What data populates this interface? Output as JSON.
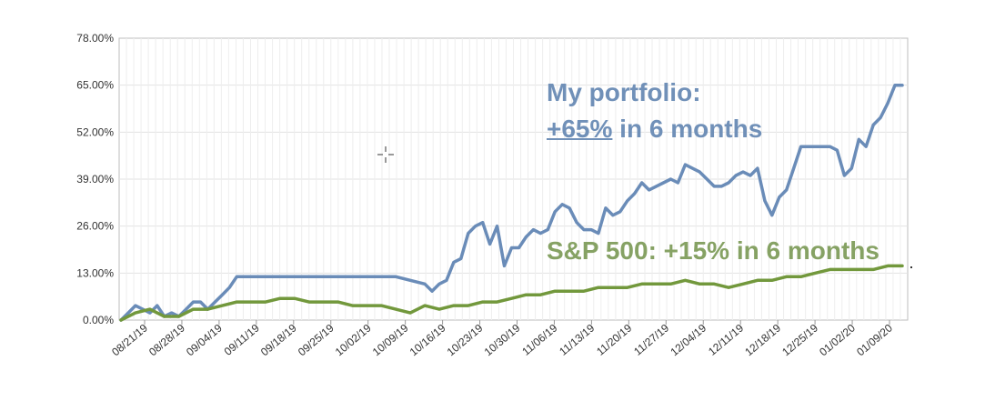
{
  "chart_data": {
    "type": "line",
    "title": "",
    "xlabel": "",
    "ylabel": "",
    "ylim": [
      0,
      78
    ],
    "y_ticks": [
      "0.00%",
      "13.00%",
      "26.00%",
      "39.00%",
      "52.00%",
      "65.00%",
      "78.00%"
    ],
    "x_tick_labels": [
      "08/21/19",
      "08/28/19",
      "09/04/19",
      "09/11/19",
      "09/18/19",
      "09/25/19",
      "10/02/19",
      "10/09/19",
      "10/16/19",
      "10/23/19",
      "10/30/19",
      "11/06/19",
      "11/13/19",
      "11/20/19",
      "11/27/19",
      "12/04/19",
      "12/11/19",
      "12/18/19",
      "12/25/19",
      "01/02/20",
      "01/09/20"
    ],
    "grid": true,
    "series": [
      {
        "color": "#6a8cb8",
        "points": [
          [
            0,
            0
          ],
          [
            1,
            2
          ],
          [
            2,
            4
          ],
          [
            3,
            3
          ],
          [
            4,
            2
          ],
          [
            5,
            4
          ],
          [
            6,
            1
          ],
          [
            7,
            2
          ],
          [
            8,
            1
          ],
          [
            9,
            3
          ],
          [
            10,
            5
          ],
          [
            11,
            5
          ],
          [
            12,
            3
          ],
          [
            13,
            5
          ],
          [
            14,
            7
          ],
          [
            15,
            9
          ],
          [
            16,
            12
          ],
          [
            18,
            12
          ],
          [
            22,
            12
          ],
          [
            26,
            12
          ],
          [
            30,
            12
          ],
          [
            34,
            12
          ],
          [
            38,
            12
          ],
          [
            40,
            11
          ],
          [
            42,
            10
          ],
          [
            43,
            8
          ],
          [
            44,
            10
          ],
          [
            45,
            11
          ],
          [
            46,
            16
          ],
          [
            47,
            17
          ],
          [
            48,
            24
          ],
          [
            49,
            26
          ],
          [
            50,
            27
          ],
          [
            51,
            21
          ],
          [
            52,
            26
          ],
          [
            53,
            15
          ],
          [
            54,
            20
          ],
          [
            55,
            20
          ],
          [
            56,
            23
          ],
          [
            57,
            25
          ],
          [
            58,
            24
          ],
          [
            59,
            25
          ],
          [
            60,
            30
          ],
          [
            61,
            32
          ],
          [
            62,
            31
          ],
          [
            63,
            27
          ],
          [
            64,
            25
          ],
          [
            65,
            25
          ],
          [
            66,
            24
          ],
          [
            67,
            31
          ],
          [
            68,
            29
          ],
          [
            69,
            30
          ],
          [
            70,
            33
          ],
          [
            71,
            35
          ],
          [
            72,
            38
          ],
          [
            73,
            36
          ],
          [
            74,
            37
          ],
          [
            75,
            38
          ],
          [
            76,
            39
          ],
          [
            77,
            38
          ],
          [
            78,
            43
          ],
          [
            79,
            42
          ],
          [
            80,
            41
          ],
          [
            81,
            39
          ],
          [
            82,
            37
          ],
          [
            83,
            37
          ],
          [
            84,
            38
          ],
          [
            85,
            40
          ],
          [
            86,
            41
          ],
          [
            87,
            40
          ],
          [
            88,
            42
          ],
          [
            89,
            33
          ],
          [
            90,
            29
          ],
          [
            91,
            34
          ],
          [
            92,
            36
          ],
          [
            93,
            42
          ],
          [
            94,
            48
          ],
          [
            95,
            48
          ],
          [
            96,
            48
          ],
          [
            97,
            48
          ],
          [
            98,
            48
          ],
          [
            99,
            47
          ],
          [
            100,
            40
          ],
          [
            101,
            42
          ],
          [
            102,
            50
          ],
          [
            103,
            48
          ],
          [
            104,
            54
          ],
          [
            105,
            56
          ],
          [
            106,
            60
          ],
          [
            107,
            65
          ],
          [
            108,
            65
          ]
        ]
      },
      {
        "color": "#72983c",
        "points": [
          [
            0,
            0
          ],
          [
            2,
            2
          ],
          [
            4,
            3
          ],
          [
            6,
            1
          ],
          [
            8,
            1
          ],
          [
            10,
            3
          ],
          [
            12,
            3
          ],
          [
            14,
            4
          ],
          [
            16,
            5
          ],
          [
            18,
            5
          ],
          [
            20,
            5
          ],
          [
            22,
            6
          ],
          [
            24,
            6
          ],
          [
            26,
            5
          ],
          [
            28,
            5
          ],
          [
            30,
            5
          ],
          [
            32,
            4
          ],
          [
            34,
            4
          ],
          [
            36,
            4
          ],
          [
            38,
            3
          ],
          [
            40,
            2
          ],
          [
            42,
            4
          ],
          [
            44,
            3
          ],
          [
            46,
            4
          ],
          [
            48,
            4
          ],
          [
            50,
            5
          ],
          [
            52,
            5
          ],
          [
            54,
            6
          ],
          [
            56,
            7
          ],
          [
            58,
            7
          ],
          [
            60,
            8
          ],
          [
            62,
            8
          ],
          [
            64,
            8
          ],
          [
            66,
            9
          ],
          [
            68,
            9
          ],
          [
            70,
            9
          ],
          [
            72,
            10
          ],
          [
            74,
            10
          ],
          [
            76,
            10
          ],
          [
            78,
            11
          ],
          [
            80,
            10
          ],
          [
            82,
            10
          ],
          [
            84,
            9
          ],
          [
            86,
            10
          ],
          [
            88,
            11
          ],
          [
            90,
            11
          ],
          [
            92,
            12
          ],
          [
            94,
            12
          ],
          [
            96,
            13
          ],
          [
            98,
            14
          ],
          [
            100,
            14
          ],
          [
            102,
            14
          ],
          [
            104,
            14
          ],
          [
            106,
            15
          ],
          [
            108,
            15
          ]
        ]
      }
    ]
  },
  "annotations": {
    "portfolio_line1": "My portfolio:",
    "portfolio_pct": "+65%",
    "portfolio_rest": " in 6 months",
    "sp_label": "S&P 500: +15% in 6 months",
    "portfolio_color": "#7090b8",
    "sp_color": "#86a264"
  }
}
